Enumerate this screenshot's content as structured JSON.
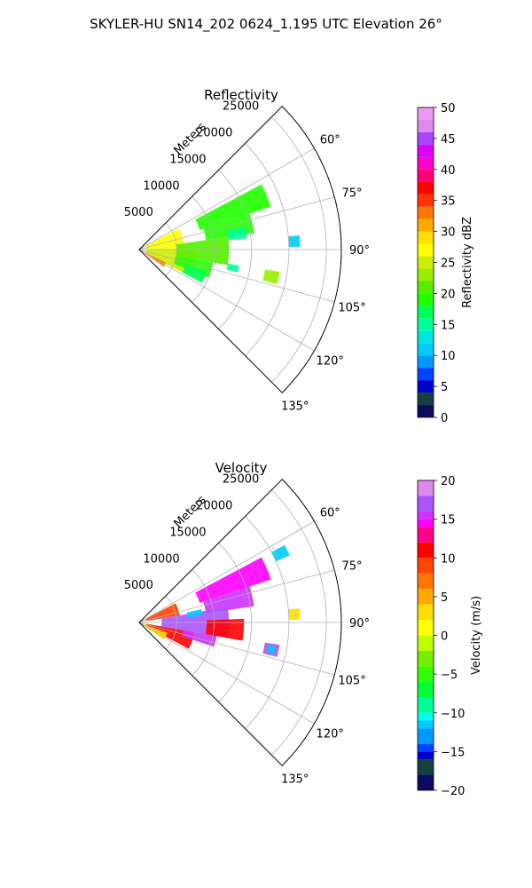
{
  "suptitle": "SKYLER-HU  SN14_202  0624_1.195 UTC Elevation 26°",
  "colors": {
    "grid": "#b0b0b0",
    "axis": "#000000",
    "background": "#ffffff"
  },
  "chart_data": [
    {
      "type": "heatmap",
      "projection": "polar-sector",
      "title": "Reflectivity",
      "radial_label": "Meters",
      "radial_ticks": [
        "5000",
        "10000",
        "15000",
        "20000",
        "25000"
      ],
      "radial_tick_values": [
        5000,
        10000,
        15000,
        20000,
        25000
      ],
      "rlim": [
        0,
        27000
      ],
      "azimuth_range_deg": [
        45,
        135
      ],
      "azimuth_ticks": [
        "60°",
        "75°",
        "90°",
        "105°",
        "120°",
        "135°"
      ],
      "azimuth_tick_values": [
        60,
        75,
        90,
        105,
        120,
        135
      ],
      "grid": true,
      "colorbar": {
        "label": "Reflectivity dBZ",
        "min": 0,
        "max": 50,
        "ticks": [
          "0",
          "5",
          "10",
          "15",
          "20",
          "25",
          "30",
          "35",
          "40",
          "45",
          "50"
        ],
        "tick_values": [
          0,
          5,
          10,
          15,
          20,
          25,
          30,
          35,
          40,
          45,
          50
        ],
        "stops": [
          [
            0,
            "#0a0a60"
          ],
          [
            2,
            "#154040"
          ],
          [
            4,
            "#0000cc"
          ],
          [
            6,
            "#0044ff"
          ],
          [
            8,
            "#0099ff"
          ],
          [
            10,
            "#00ccff"
          ],
          [
            12,
            "#00e5dd"
          ],
          [
            14,
            "#00ff99"
          ],
          [
            16,
            "#00ff55"
          ],
          [
            18,
            "#22ff00"
          ],
          [
            20,
            "#55ee00"
          ],
          [
            22,
            "#99ee00"
          ],
          [
            24,
            "#ccee00"
          ],
          [
            26,
            "#ffff00"
          ],
          [
            28,
            "#ffdd00"
          ],
          [
            30,
            "#ffaa00"
          ],
          [
            32,
            "#ff7700"
          ],
          [
            34,
            "#ff3300"
          ],
          [
            36,
            "#ff0000"
          ],
          [
            38,
            "#ff0077"
          ],
          [
            40,
            "#ff00cc"
          ],
          [
            42,
            "#dd00ff"
          ],
          [
            44,
            "#aa44ff"
          ],
          [
            46,
            "#dd88ee"
          ],
          [
            48,
            "#ee99ee"
          ],
          [
            50,
            "#ffccff"
          ]
        ]
      },
      "echoes": [
        {
          "az": [
            62,
            72
          ],
          "r": [
            8500,
            18500
          ],
          "value": 19
        },
        {
          "az": [
            72,
            82
          ],
          "r": [
            9000,
            15500
          ],
          "value": 18
        },
        {
          "az": [
            78,
            84
          ],
          "r": [
            12000,
            14500
          ],
          "value": 14
        },
        {
          "az": [
            85,
            89
          ],
          "r": [
            20000,
            21500
          ],
          "value": 10
        },
        {
          "az": [
            62,
            90
          ],
          "r": [
            1000,
            6000
          ],
          "value": 26
        },
        {
          "az": [
            90,
            118
          ],
          "r": [
            1000,
            7500
          ],
          "value": 24
        },
        {
          "az": [
            82,
            100
          ],
          "r": [
            5000,
            12000
          ],
          "value": 20
        },
        {
          "az": [
            100,
            112
          ],
          "r": [
            5000,
            10000
          ],
          "value": 18
        },
        {
          "az": [
            108,
            118
          ],
          "r": [
            6500,
            9500
          ],
          "value": 17
        },
        {
          "az": [
            99,
            104
          ],
          "r": [
            17000,
            19000
          ],
          "value": 22
        },
        {
          "az": [
            99,
            103
          ],
          "r": [
            12000,
            13500
          ],
          "value": 15
        },
        {
          "az": [
            116,
            125
          ],
          "r": [
            800,
            4000
          ],
          "value": 33
        }
      ]
    },
    {
      "type": "heatmap",
      "projection": "polar-sector",
      "title": "Velocity",
      "radial_label": "Meters",
      "radial_ticks": [
        "5000",
        "10000",
        "15000",
        "20000",
        "25000"
      ],
      "radial_tick_values": [
        5000,
        10000,
        15000,
        20000,
        25000
      ],
      "rlim": [
        0,
        27000
      ],
      "azimuth_range_deg": [
        45,
        135
      ],
      "azimuth_ticks": [
        "60°",
        "75°",
        "90°",
        "105°",
        "120°",
        "135°"
      ],
      "azimuth_tick_values": [
        60,
        75,
        90,
        105,
        120,
        135
      ],
      "grid": true,
      "colorbar": {
        "label": "Velocity (m/s)",
        "min": -20,
        "max": 20,
        "ticks": [
          "−20",
          "−15",
          "−10",
          "−5",
          "0",
          "5",
          "10",
          "15",
          "20"
        ],
        "tick_values": [
          -20,
          -15,
          -10,
          -5,
          0,
          5,
          10,
          15,
          20
        ],
        "stops": [
          [
            -20,
            "#0a0a60"
          ],
          [
            -18,
            "#154040"
          ],
          [
            -16,
            "#0000cc"
          ],
          [
            -15,
            "#0044ff"
          ],
          [
            -14,
            "#0099ff"
          ],
          [
            -12,
            "#00ccff"
          ],
          [
            -11,
            "#00ffee"
          ],
          [
            -10,
            "#00ff99"
          ],
          [
            -8,
            "#00ff33"
          ],
          [
            -6,
            "#33ff00"
          ],
          [
            -4,
            "#77ee00"
          ],
          [
            -2,
            "#bbff00"
          ],
          [
            0,
            "#ffff00"
          ],
          [
            2,
            "#ffdd00"
          ],
          [
            4,
            "#ffaa00"
          ],
          [
            6,
            "#ff7700"
          ],
          [
            8,
            "#ff4400"
          ],
          [
            10,
            "#ff0000"
          ],
          [
            12,
            "#ff0088"
          ],
          [
            14,
            "#ff00ff"
          ],
          [
            15,
            "#cc33ff"
          ],
          [
            16,
            "#aa55ff"
          ],
          [
            18,
            "#dd88ee"
          ],
          [
            20,
            "#ffccff"
          ]
        ]
      },
      "echoes": [
        {
          "az": [
            62,
            72
          ],
          "r": [
            8500,
            18500
          ],
          "value": 14
        },
        {
          "az": [
            72,
            82
          ],
          "r": [
            9000,
            15500
          ],
          "value": 15
        },
        {
          "az": [
            62,
            66
          ],
          "r": [
            20000,
            22000
          ],
          "value": -12
        },
        {
          "az": [
            85,
            89
          ],
          "r": [
            20000,
            21500
          ],
          "value": 3
        },
        {
          "az": [
            62,
            80
          ],
          "r": [
            1000,
            5500
          ],
          "value": 8
        },
        {
          "az": [
            80,
            100
          ],
          "r": [
            3000,
            12000
          ],
          "value": 16
        },
        {
          "az": [
            88,
            100
          ],
          "r": [
            9000,
            14000
          ],
          "value": 11
        },
        {
          "az": [
            100,
            118
          ],
          "r": [
            1000,
            7500
          ],
          "value": 10
        },
        {
          "az": [
            100,
            108
          ],
          "r": [
            6000,
            10500
          ],
          "value": 15
        },
        {
          "az": [
            110,
            125
          ],
          "r": [
            500,
            4000
          ],
          "value": 2
        },
        {
          "az": [
            99,
            104
          ],
          "r": [
            17000,
            19000
          ],
          "value": 16
        },
        {
          "az": [
            100,
            103
          ],
          "r": [
            17500,
            18500
          ],
          "value": -12
        },
        {
          "az": [
            78,
            84
          ],
          "r": [
            6500,
            8500
          ],
          "value": -12
        }
      ]
    }
  ]
}
